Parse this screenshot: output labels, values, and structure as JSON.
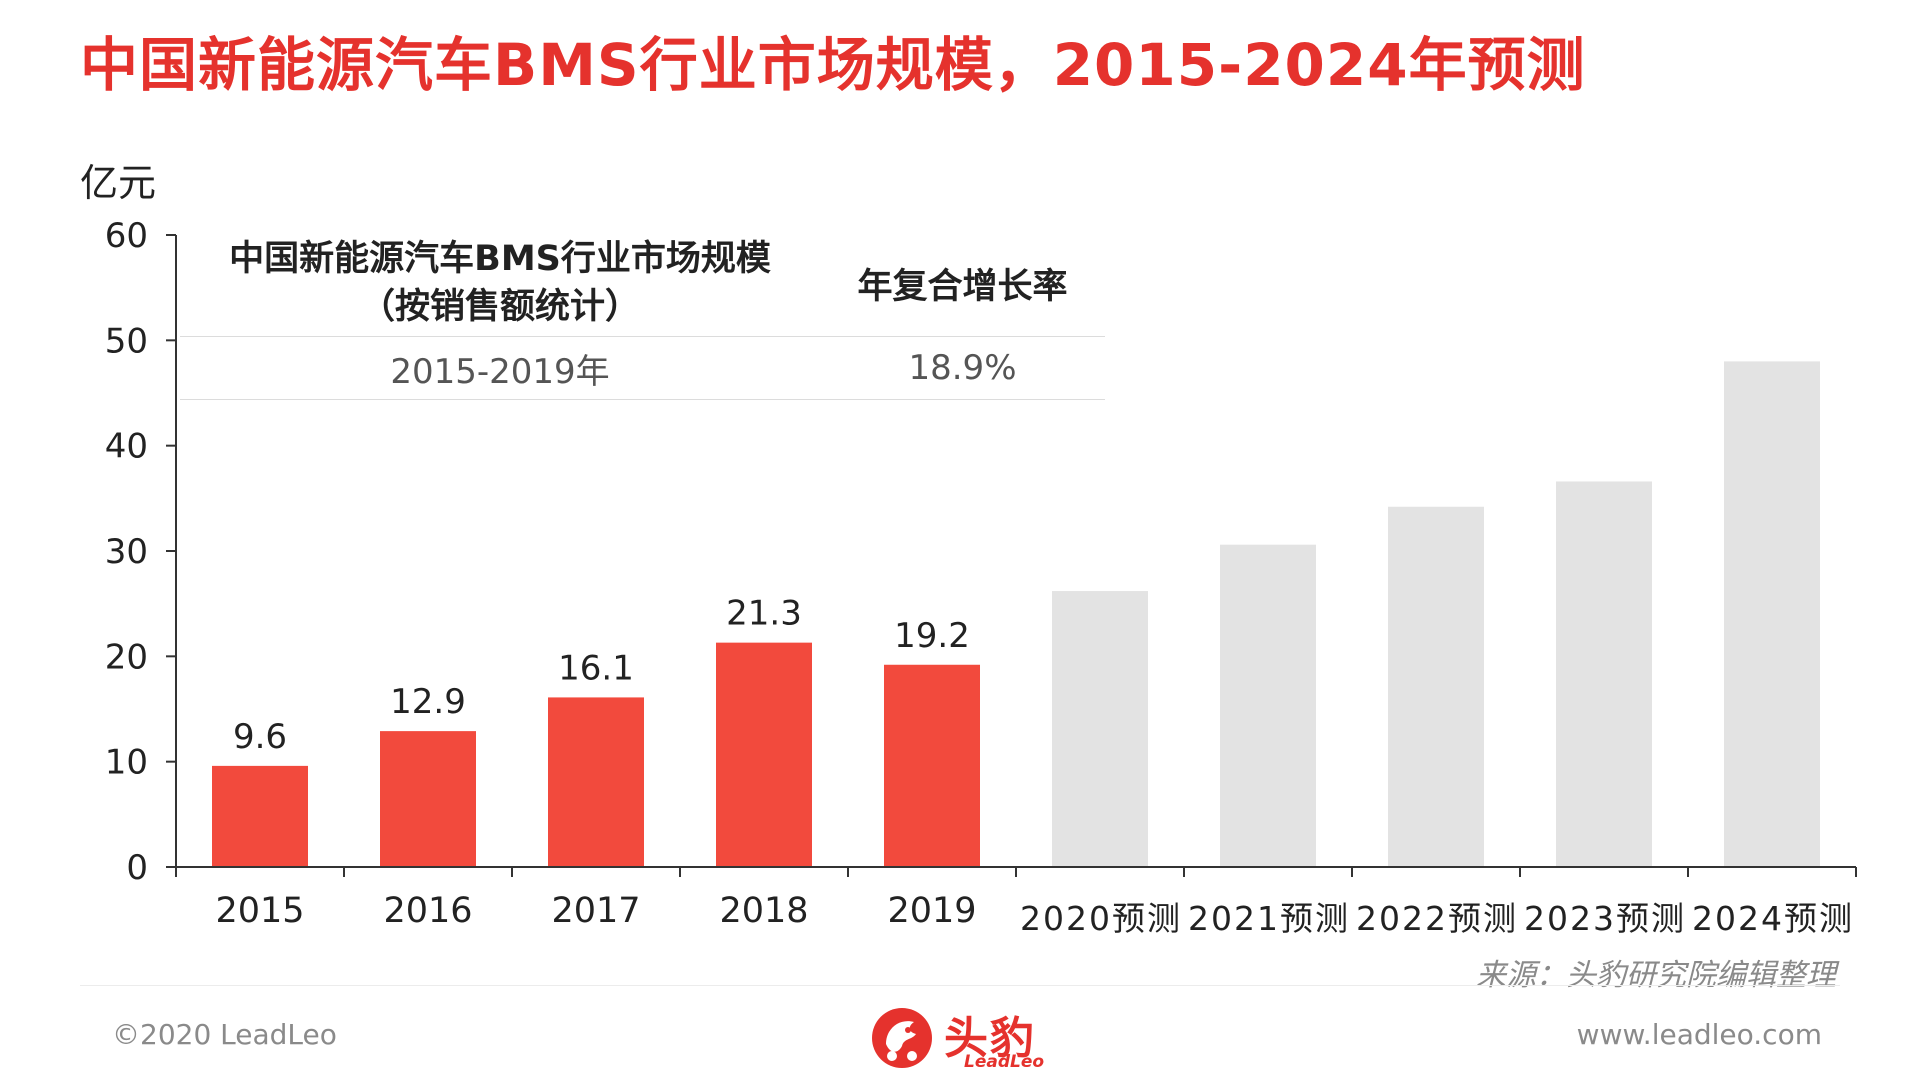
{
  "title": "中国新能源汽车BMS行业市场规模，2015-2024年预测",
  "unit_label": "亿元",
  "cagr_table": {
    "header_line1": "中国新能源汽车BMS行业市场规模",
    "header_line2": "（按销售额统计）",
    "header_rate": "年复合增长率",
    "period": "2015-2019年",
    "rate": "18.9%"
  },
  "chart_data": {
    "type": "bar",
    "categories": [
      "2015",
      "2016",
      "2017",
      "2018",
      "2019",
      "2020预测",
      "2021预测",
      "2022预测",
      "2023预测",
      "2024预测"
    ],
    "values": [
      9.6,
      12.9,
      16.1,
      21.3,
      19.2,
      26.2,
      30.6,
      34.2,
      36.6,
      48.0
    ],
    "data_labels": [
      "9.6",
      "12.9",
      "16.1",
      "21.3",
      "19.2",
      "",
      "",
      "",
      "",
      ""
    ],
    "forecast": [
      false,
      false,
      false,
      false,
      false,
      true,
      true,
      true,
      true,
      true
    ],
    "ylim": [
      0,
      60
    ],
    "yticks": [
      0,
      10,
      20,
      30,
      40,
      50,
      60
    ],
    "ylabel": "亿元",
    "colors": {
      "actual": "#f24a3d",
      "forecast": "#e3e3e3",
      "axis": "#333333"
    }
  },
  "source": "来源：头豹研究院编辑整理",
  "footer": {
    "copyright": "©2020 LeadLeo",
    "website": "www.leadleo.com",
    "logo_cn": "头豹",
    "logo_en": "LeadLeo"
  },
  "icons": {
    "logo": "leadleo-logo-icon"
  },
  "colors": {
    "title": "#e5322d",
    "brand": "#e5322d"
  }
}
